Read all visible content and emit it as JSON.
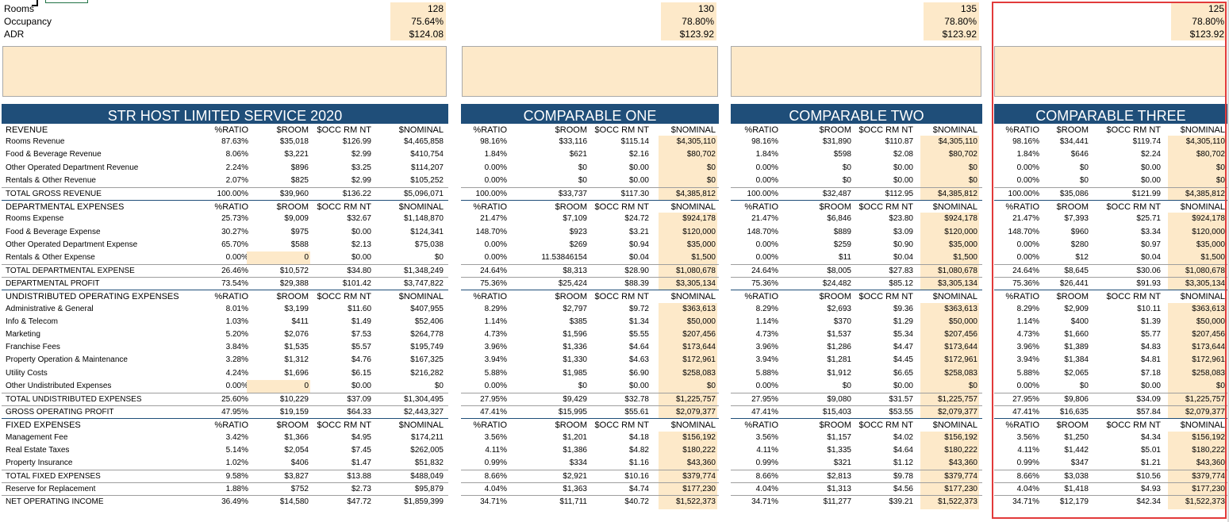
{
  "top": {
    "labels": [
      "Rooms",
      "Occupancy",
      "ADR"
    ],
    "blocks": [
      {
        "values": [
          "128",
          "75.64%",
          "$124.08"
        ]
      },
      {
        "values": [
          "130",
          "78.80%",
          "$123.92"
        ]
      },
      {
        "values": [
          "135",
          "78.80%",
          "$123.92"
        ]
      },
      {
        "values": [
          "125",
          "78.80%",
          "$123.92"
        ]
      }
    ]
  },
  "panels": [
    {
      "title": "STR HOST LIMITED SERVICE 2020",
      "headers": [
        "%RATIO",
        "$ROOM",
        "$OCC RM NT",
        "$NOMINAL"
      ],
      "rows": [
        [
          "87.63%",
          "$35,018",
          "$126.99",
          "$4,465,858"
        ],
        [
          "8.06%",
          "$3,221",
          "$2.99",
          "$410,754"
        ],
        [
          "2.24%",
          "$896",
          "$3.25",
          "$114,207"
        ],
        [
          "2.07%",
          "$825",
          "$2.99",
          "$105,252"
        ],
        [
          "100.00%",
          "$39,960",
          "$136.22",
          "$5,096,071"
        ],
        [
          "%RATIO",
          "$ROOM",
          "$OCC RM NT",
          "$NOMINAL"
        ],
        [
          "25.73%",
          "$9,009",
          "$32.67",
          "$1,148,870"
        ],
        [
          "30.27%",
          "$975",
          "$0.00",
          "$124,341"
        ],
        [
          "65.70%",
          "$588",
          "$2.13",
          "$75,038"
        ],
        [
          "0.00%",
          "0",
          "$0.00",
          "$0"
        ],
        [
          "26.46%",
          "$10,572",
          "$34.80",
          "$1,348,249"
        ],
        [
          "73.54%",
          "$29,388",
          "$101.42",
          "$3,747,822"
        ],
        [
          "%RATIO",
          "$ROOM",
          "$OCC RM NT",
          "$NOMINAL"
        ],
        [
          "8.01%",
          "$3,199",
          "$11.60",
          "$407,955"
        ],
        [
          "1.03%",
          "$411",
          "$1.49",
          "$52,406"
        ],
        [
          "5.20%",
          "$2,076",
          "$7.53",
          "$264,778"
        ],
        [
          "3.84%",
          "$1,535",
          "$5.57",
          "$195,749"
        ],
        [
          "3.28%",
          "$1,312",
          "$4.76",
          "$167,325"
        ],
        [
          "4.24%",
          "$1,696",
          "$6.15",
          "$216,282"
        ],
        [
          "0.00%",
          "0",
          "$0.00",
          "$0"
        ],
        [
          "25.60%",
          "$10,229",
          "$37.09",
          "$1,304,495"
        ],
        [
          "47.95%",
          "$19,159",
          "$64.33",
          "$2,443,327"
        ],
        [
          "%RATIO",
          "$ROOM",
          "$OCC RM NT",
          "$NOMINAL"
        ],
        [
          "3.42%",
          "$1,366",
          "$4.95",
          "$174,211"
        ],
        [
          "5.14%",
          "$2,054",
          "$7.45",
          "$262,005"
        ],
        [
          "1.02%",
          "$406",
          "$1.47",
          "$51,832"
        ],
        [
          "9.58%",
          "$3,827",
          "$13.88",
          "$488,049"
        ],
        [
          "1.88%",
          "$752",
          "$2.73",
          "$95,879"
        ],
        [
          "36.49%",
          "$14,580",
          "$47.72",
          "$1,859,399"
        ]
      ]
    },
    {
      "title": "COMPARABLE ONE",
      "headers": [
        "%RATIO",
        "$ROOM",
        "$OCC RM NT",
        "$NOMINAL"
      ],
      "rows": [
        [
          "98.16%",
          "$33,116",
          "$115.14",
          "$4,305,110"
        ],
        [
          "1.84%",
          "$621",
          "$2.16",
          "$80,702"
        ],
        [
          "0.00%",
          "$0",
          "$0.00",
          "$0"
        ],
        [
          "0.00%",
          "$0",
          "$0.00",
          "$0"
        ],
        [
          "100.00%",
          "$33,737",
          "$117.30",
          "$4,385,812"
        ],
        [
          "%RATIO",
          "$ROOM",
          "$OCC RM NT",
          "$NOMINAL"
        ],
        [
          "21.47%",
          "$7,109",
          "$24.72",
          "$924,178"
        ],
        [
          "148.70%",
          "$923",
          "$3.21",
          "$120,000"
        ],
        [
          "0.00%",
          "$269",
          "$0.94",
          "$35,000"
        ],
        [
          "0.00%",
          "11.53846154",
          "$0.04",
          "$1,500"
        ],
        [
          "24.64%",
          "$8,313",
          "$28.90",
          "$1,080,678"
        ],
        [
          "75.36%",
          "$25,424",
          "$88.39",
          "$3,305,134"
        ],
        [
          "%RATIO",
          "$ROOM",
          "$OCC RM NT",
          "$NOMINAL"
        ],
        [
          "8.29%",
          "$2,797",
          "$9.72",
          "$363,613"
        ],
        [
          "1.14%",
          "$385",
          "$1.34",
          "$50,000"
        ],
        [
          "4.73%",
          "$1,596",
          "$5.55",
          "$207,456"
        ],
        [
          "3.96%",
          "$1,336",
          "$4.64",
          "$173,644"
        ],
        [
          "3.94%",
          "$1,330",
          "$4.63",
          "$172,961"
        ],
        [
          "5.88%",
          "$1,985",
          "$6.90",
          "$258,083"
        ],
        [
          "0.00%",
          "$0",
          "$0.00",
          "$0"
        ],
        [
          "27.95%",
          "$9,429",
          "$32.78",
          "$1,225,757"
        ],
        [
          "47.41%",
          "$15,995",
          "$55.61",
          "$2,079,377"
        ],
        [
          "%RATIO",
          "$ROOM",
          "$OCC RM NT",
          "$NOMINAL"
        ],
        [
          "3.56%",
          "$1,201",
          "$4.18",
          "$156,192"
        ],
        [
          "4.11%",
          "$1,386",
          "$4.82",
          "$180,222"
        ],
        [
          "0.99%",
          "$334",
          "$1.16",
          "$43,360"
        ],
        [
          "8.66%",
          "$2,921",
          "$10.16",
          "$379,774"
        ],
        [
          "4.04%",
          "$1,363",
          "$4.74",
          "$177,230"
        ],
        [
          "34.71%",
          "$11,711",
          "$40.72",
          "$1,522,373"
        ]
      ]
    },
    {
      "title": "COMPARABLE TWO",
      "headers": [
        "%RATIO",
        "$ROOM",
        "$OCC RM NT",
        "$NOMINAL"
      ],
      "rows": [
        [
          "98.16%",
          "$31,890",
          "$110.87",
          "$4,305,110"
        ],
        [
          "1.84%",
          "$598",
          "$2.08",
          "$80,702"
        ],
        [
          "0.00%",
          "$0",
          "$0.00",
          "$0"
        ],
        [
          "0.00%",
          "$0",
          "$0.00",
          "$0"
        ],
        [
          "100.00%",
          "$32,487",
          "$112.95",
          "$4,385,812"
        ],
        [
          "%RATIO",
          "$ROOM",
          "$OCC RM NT",
          "$NOMINAL"
        ],
        [
          "21.47%",
          "$6,846",
          "$23.80",
          "$924,178"
        ],
        [
          "148.70%",
          "$889",
          "$3.09",
          "$120,000"
        ],
        [
          "0.00%",
          "$259",
          "$0.90",
          "$35,000"
        ],
        [
          "0.00%",
          "$11",
          "$0.04",
          "$1,500"
        ],
        [
          "24.64%",
          "$8,005",
          "$27.83",
          "$1,080,678"
        ],
        [
          "75.36%",
          "$24,482",
          "$85.12",
          "$3,305,134"
        ],
        [
          "%RATIO",
          "$ROOM",
          "$OCC RM NT",
          "$NOMINAL"
        ],
        [
          "8.29%",
          "$2,693",
          "$9.36",
          "$363,613"
        ],
        [
          "1.14%",
          "$370",
          "$1.29",
          "$50,000"
        ],
        [
          "4.73%",
          "$1,537",
          "$5.34",
          "$207,456"
        ],
        [
          "3.96%",
          "$1,286",
          "$4.47",
          "$173,644"
        ],
        [
          "3.94%",
          "$1,281",
          "$4.45",
          "$172,961"
        ],
        [
          "5.88%",
          "$1,912",
          "$6.65",
          "$258,083"
        ],
        [
          "0.00%",
          "$0",
          "$0.00",
          "$0"
        ],
        [
          "27.95%",
          "$9,080",
          "$31.57",
          "$1,225,757"
        ],
        [
          "47.41%",
          "$15,403",
          "$53.55",
          "$2,079,377"
        ],
        [
          "%RATIO",
          "$ROOM",
          "$OCC RM NT",
          "$NOMINAL"
        ],
        [
          "3.56%",
          "$1,157",
          "$4.02",
          "$156,192"
        ],
        [
          "4.11%",
          "$1,335",
          "$4.64",
          "$180,222"
        ],
        [
          "0.99%",
          "$321",
          "$1.12",
          "$43,360"
        ],
        [
          "8.66%",
          "$2,813",
          "$9.78",
          "$379,774"
        ],
        [
          "4.04%",
          "$1,313",
          "$4.56",
          "$177,230"
        ],
        [
          "34.71%",
          "$11,277",
          "$39.21",
          "$1,522,373"
        ]
      ]
    },
    {
      "title": "COMPARABLE THREE",
      "headers": [
        "%RATIO",
        "$ROOM",
        "$OCC RM NT",
        "$NOMINAL"
      ],
      "rows": [
        [
          "98.16%",
          "$34,441",
          "$119.74",
          "$4,305,110"
        ],
        [
          "1.84%",
          "$646",
          "$2.24",
          "$80,702"
        ],
        [
          "0.00%",
          "$0",
          "$0.00",
          "$0"
        ],
        [
          "0.00%",
          "$0",
          "$0.00",
          "$0"
        ],
        [
          "100.00%",
          "$35,086",
          "$121.99",
          "$4,385,812"
        ],
        [
          "%RATIO",
          "$ROOM",
          "$OCC RM NT",
          "$NOMINAL"
        ],
        [
          "21.47%",
          "$7,393",
          "$25.71",
          "$924,178"
        ],
        [
          "148.70%",
          "$960",
          "$3.34",
          "$120,000"
        ],
        [
          "0.00%",
          "$280",
          "$0.97",
          "$35,000"
        ],
        [
          "0.00%",
          "$12",
          "$0.04",
          "$1,500"
        ],
        [
          "24.64%",
          "$8,645",
          "$30.06",
          "$1,080,678"
        ],
        [
          "75.36%",
          "$26,441",
          "$91.93",
          "$3,305,134"
        ],
        [
          "%RATIO",
          "$ROOM",
          "$OCC RM NT",
          "$NOMINAL"
        ],
        [
          "8.29%",
          "$2,909",
          "$10.11",
          "$363,613"
        ],
        [
          "1.14%",
          "$400",
          "$1.39",
          "$50,000"
        ],
        [
          "4.73%",
          "$1,660",
          "$5.77",
          "$207,456"
        ],
        [
          "3.96%",
          "$1,389",
          "$4.83",
          "$173,644"
        ],
        [
          "3.94%",
          "$1,384",
          "$4.81",
          "$172,961"
        ],
        [
          "5.88%",
          "$2,065",
          "$7.18",
          "$258,083"
        ],
        [
          "0.00%",
          "$0",
          "$0.00",
          "$0"
        ],
        [
          "27.95%",
          "$9,806",
          "$34.09",
          "$1,225,757"
        ],
        [
          "47.41%",
          "$16,635",
          "$57.84",
          "$2,079,377"
        ],
        [
          "%RATIO",
          "$ROOM",
          "$OCC RM NT",
          "$NOMINAL"
        ],
        [
          "3.56%",
          "$1,250",
          "$4.34",
          "$156,192"
        ],
        [
          "4.11%",
          "$1,442",
          "$5.01",
          "$180,222"
        ],
        [
          "0.99%",
          "$347",
          "$1.21",
          "$43,360"
        ],
        [
          "8.66%",
          "$3,038",
          "$10.56",
          "$379,774"
        ],
        [
          "4.04%",
          "$1,418",
          "$4.93",
          "$177,230"
        ],
        [
          "34.71%",
          "$12,179",
          "$42.34",
          "$1,522,373"
        ]
      ]
    }
  ],
  "row_labels": [
    "REVENUE",
    "Rooms Revenue",
    "Food & Beverage Revenue",
    "Other Operated Department Revenue",
    "Rentals & Other Revenue",
    "TOTAL GROSS REVENUE",
    "DEPARTMENTAL EXPENSES",
    "Rooms Expense",
    "Food & Beverage Expense",
    "Other Operated Department Expense",
    "Rentals & Other Expense",
    "TOTAL DEPARTMENTAL EXPENSE",
    "DEPARTMENTAL PROFIT",
    "UNDISTRIBUTED OPERATING EXPENSES",
    "Administrative & General",
    "Info & Telecom",
    "Marketing",
    "Franchise Fees",
    "Property Operation & Maintenance",
    "Utility Costs",
    "Other Undistributed Expenses",
    "TOTAL UNDISTRIBUTED EXPENSES",
    "GROSS OPERATING PROFIT",
    "FIXED EXPENSES",
    "Management Fee",
    "Real Estate Taxes",
    "Property Insurance",
    "TOTAL FIXED EXPENSES",
    "Reserve for Replacement",
    "NET OPERATING INCOME"
  ],
  "colors": {
    "header_bg": "#1f4e79",
    "input_fill": "#fde9c9",
    "selection": "#e23a3a"
  }
}
